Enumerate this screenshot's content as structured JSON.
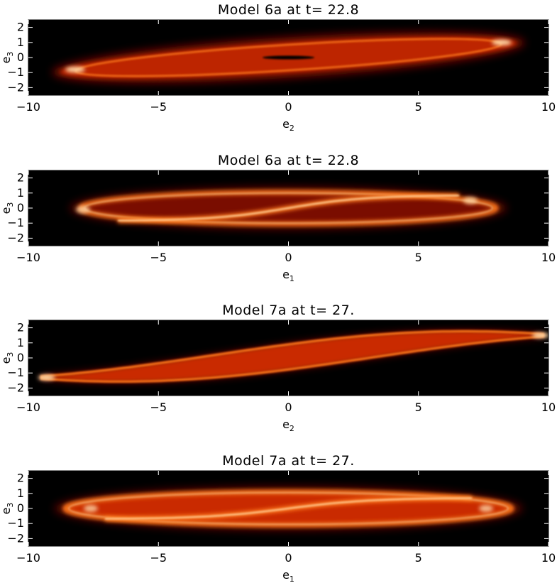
{
  "chart_data": [
    {
      "type": "heatmap",
      "title": "Model 6a at t= 22.8",
      "xlabel": "e",
      "xlabel_sub": "2",
      "ylabel": "e",
      "ylabel_sub": "3",
      "xlim": [
        -10,
        10
      ],
      "ylim": [
        -2.5,
        2.5
      ],
      "x_ticks": [
        -10,
        -5,
        0,
        5,
        10
      ],
      "y_ticks": [
        -2,
        -1,
        0,
        1,
        2
      ],
      "colormap": "black-red-orange-white",
      "density_features": {
        "inner_ellipse_halfwidth": [
          8.8,
          1.0
        ],
        "tilt_slope": 0.11,
        "central_hole_halfwidth": [
          1.0,
          0.12
        ],
        "bright_spots_xy": [
          [
            -8.2,
            -0.8
          ],
          [
            8.2,
            1.0
          ]
        ]
      }
    },
    {
      "type": "heatmap",
      "title": "Model 6a at t= 22.8",
      "xlabel": "e",
      "xlabel_sub": "1",
      "ylabel": "e",
      "ylabel_sub": "3",
      "xlim": [
        -10,
        10
      ],
      "ylim": [
        -2.5,
        2.5
      ],
      "x_ticks": [
        -10,
        -5,
        0,
        5,
        10
      ],
      "y_ticks": [
        -2,
        -1,
        0,
        1,
        2
      ],
      "colormap": "black-red-orange-white",
      "density_features": {
        "ring_halfwidth": [
          8.0,
          1.05
        ],
        "s_curve_amplitude": 0.85,
        "bright_spots_xy": [
          [
            -7.9,
            -0.1
          ],
          [
            7.0,
            0.5
          ]
        ]
      }
    },
    {
      "type": "heatmap",
      "title": "Model 7a at t= 27.",
      "xlabel": "e",
      "xlabel_sub": "2",
      "ylabel": "e",
      "ylabel_sub": "3",
      "xlim": [
        -10,
        10
      ],
      "ylim": [
        -2.5,
        2.5
      ],
      "x_ticks": [
        -10,
        -5,
        0,
        5,
        10
      ],
      "y_ticks": [
        -2,
        -1,
        0,
        1,
        2
      ],
      "colormap": "black-red-orange-white",
      "density_features": {
        "band_endpoints_xy": [
          [
            -9.5,
            -1.3
          ],
          [
            9.8,
            1.5
          ]
        ],
        "band_halfthickness": 0.75,
        "bright_spots_xy": [
          [
            -9.3,
            -1.3
          ],
          [
            9.7,
            1.5
          ]
        ]
      }
    },
    {
      "type": "heatmap",
      "title": "Model 7a at t= 27.",
      "xlabel": "e",
      "xlabel_sub": "1",
      "ylabel": "e",
      "ylabel_sub": "3",
      "xlim": [
        -10,
        10
      ],
      "ylim": [
        -2.5,
        2.5
      ],
      "x_ticks": [
        -10,
        -5,
        0,
        5,
        10
      ],
      "y_ticks": [
        -2,
        -1,
        0,
        1,
        2
      ],
      "colormap": "black-red-orange-white",
      "density_features": {
        "ellipse_halfwidth": [
          8.6,
          1.1
        ],
        "s_curve_amplitude": 0.7,
        "bright_spots_xy": [
          [
            -7.6,
            0.0
          ],
          [
            7.6,
            0.0
          ]
        ]
      }
    }
  ],
  "colors": {
    "background": "#000000",
    "dim_red": "#7a0d00",
    "red": "#c92b05",
    "orange": "#ff7a1a",
    "bright": "#ffd9a8",
    "axis": "#000000"
  }
}
